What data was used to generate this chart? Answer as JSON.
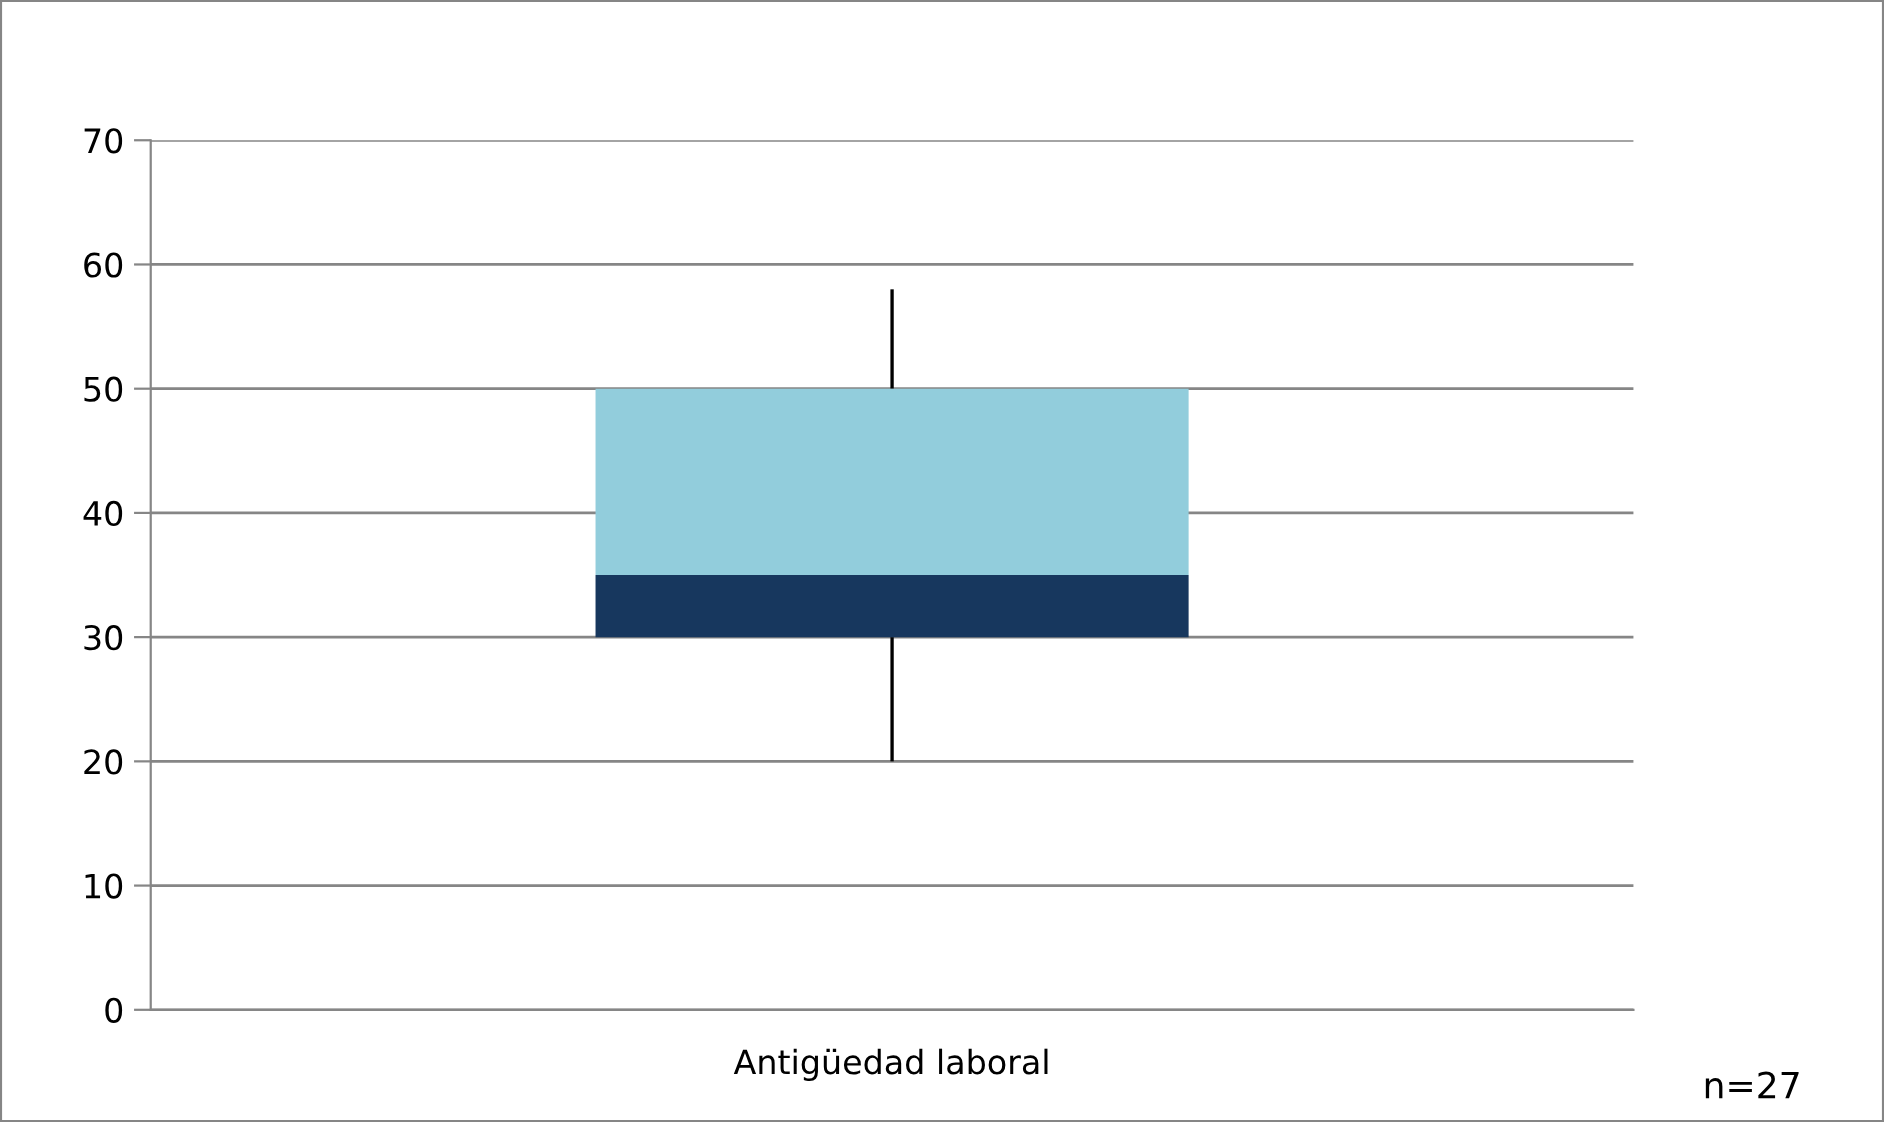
{
  "chart_data": {
    "type": "box",
    "categories": [
      "Antigüedad laboral"
    ],
    "boxes": [
      {
        "low": 20,
        "q1": 30,
        "median": 35,
        "q3": 50,
        "high": 58
      }
    ],
    "colors": [
      [
        "#17375e",
        "#92cddc"
      ]
    ],
    "ylim": [
      0,
      70
    ],
    "yticks": [
      0,
      10,
      20,
      30,
      40,
      50,
      60,
      70
    ],
    "grid": "y",
    "legend": false,
    "annotations": [
      "n=27"
    ]
  }
}
